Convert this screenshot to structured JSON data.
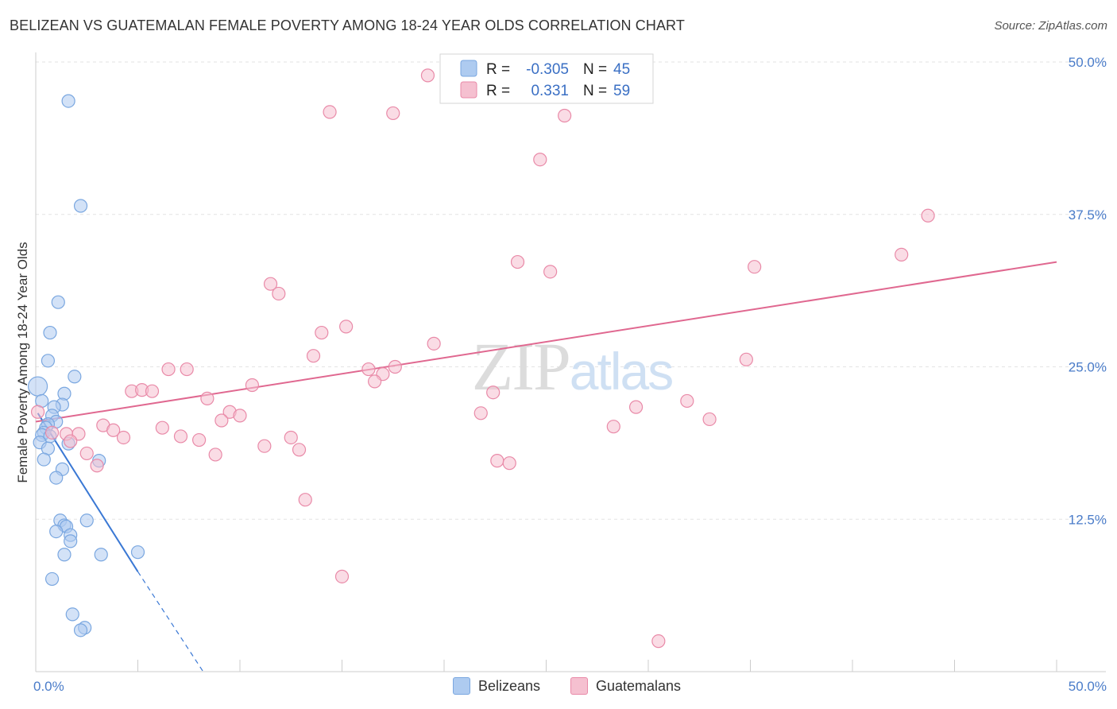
{
  "chart_data": {
    "type": "scatter",
    "title": "BELIZEAN VS GUATEMALAN FEMALE POVERTY AMONG 18-24 YEAR OLDS CORRELATION CHART",
    "source": "Source: ZipAtlas.com",
    "xlabel": "",
    "ylabel": "Female Poverty Among 18-24 Year Olds",
    "xlim": [
      0,
      50
    ],
    "ylim": [
      0,
      50
    ],
    "x_tick_labels": [
      "0.0%",
      "50.0%"
    ],
    "y_ticks": [
      12.5,
      25.0,
      37.5,
      50.0
    ],
    "y_tick_labels": [
      "12.5%",
      "25.0%",
      "37.5%",
      "50.0%"
    ],
    "watermark": "ZIPatlas",
    "legend": {
      "rows": [
        {
          "r_label": "R =",
          "r_value": "-0.305",
          "n_label": "N =",
          "n_value": "45"
        },
        {
          "r_label": "R =",
          "r_value": "0.331",
          "n_label": "N =",
          "n_value": "59"
        }
      ]
    },
    "series": [
      {
        "name": "Belizeans",
        "color": "#7aa7e0",
        "fill": "#aecbf0",
        "trend": {
          "x0": 0.1,
          "y0": 21.2,
          "x1": 5.0,
          "y1": 8.2,
          "dash_x1": 8.2,
          "dash_y1": 0.0
        },
        "points": [
          [
            1.6,
            46.8
          ],
          [
            2.2,
            38.2
          ],
          [
            1.1,
            30.3
          ],
          [
            0.7,
            27.8
          ],
          [
            0.6,
            25.5
          ],
          [
            1.9,
            24.2
          ],
          [
            0.1,
            23.4
          ],
          [
            1.4,
            22.8
          ],
          [
            0.3,
            22.2
          ],
          [
            1.3,
            21.9
          ],
          [
            0.9,
            21.7
          ],
          [
            0.8,
            21.0
          ],
          [
            1.0,
            20.5
          ],
          [
            0.6,
            20.3
          ],
          [
            0.5,
            20.0
          ],
          [
            0.4,
            19.6
          ],
          [
            0.3,
            19.4
          ],
          [
            0.7,
            19.3
          ],
          [
            0.2,
            18.8
          ],
          [
            1.6,
            18.7
          ],
          [
            0.6,
            18.3
          ],
          [
            0.4,
            17.4
          ],
          [
            3.1,
            17.3
          ],
          [
            1.3,
            16.6
          ],
          [
            1.0,
            15.9
          ],
          [
            2.5,
            12.4
          ],
          [
            1.2,
            12.4
          ],
          [
            1.4,
            12.0
          ],
          [
            1.5,
            11.9
          ],
          [
            1.0,
            11.5
          ],
          [
            1.7,
            11.2
          ],
          [
            1.7,
            10.7
          ],
          [
            5.0,
            9.8
          ],
          [
            3.2,
            9.6
          ],
          [
            1.4,
            9.6
          ],
          [
            0.8,
            7.6
          ],
          [
            1.8,
            4.7
          ],
          [
            2.4,
            3.6
          ],
          [
            2.2,
            3.4
          ]
        ]
      },
      {
        "name": "Guatemalans",
        "color": "#e98aa8",
        "fill": "#f5c0d0",
        "trend": {
          "x0": 0.0,
          "y0": 20.5,
          "x1": 50.0,
          "y1": 33.6
        },
        "points": [
          [
            19.2,
            48.9
          ],
          [
            14.4,
            45.9
          ],
          [
            17.5,
            45.8
          ],
          [
            25.9,
            45.6
          ],
          [
            24.7,
            42.0
          ],
          [
            43.7,
            37.4
          ],
          [
            42.4,
            34.2
          ],
          [
            23.6,
            33.6
          ],
          [
            25.2,
            32.8
          ],
          [
            35.2,
            33.2
          ],
          [
            11.5,
            31.8
          ],
          [
            11.9,
            31.0
          ],
          [
            14.0,
            27.8
          ],
          [
            15.2,
            28.3
          ],
          [
            19.5,
            26.9
          ],
          [
            13.6,
            25.9
          ],
          [
            34.8,
            25.6
          ],
          [
            6.5,
            24.8
          ],
          [
            7.4,
            24.8
          ],
          [
            16.3,
            24.8
          ],
          [
            17.6,
            25.0
          ],
          [
            17.0,
            24.4
          ],
          [
            16.6,
            23.8
          ],
          [
            10.6,
            23.5
          ],
          [
            4.7,
            23.0
          ],
          [
            5.2,
            23.1
          ],
          [
            5.7,
            23.0
          ],
          [
            22.4,
            22.9
          ],
          [
            8.4,
            22.4
          ],
          [
            31.9,
            22.2
          ],
          [
            0.1,
            21.3
          ],
          [
            29.4,
            21.7
          ],
          [
            9.5,
            21.3
          ],
          [
            10.0,
            21.0
          ],
          [
            21.8,
            21.2
          ],
          [
            9.1,
            20.6
          ],
          [
            33.0,
            20.7
          ],
          [
            3.3,
            20.2
          ],
          [
            6.2,
            20.0
          ],
          [
            28.3,
            20.1
          ],
          [
            3.8,
            19.8
          ],
          [
            1.5,
            19.5
          ],
          [
            2.1,
            19.5
          ],
          [
            7.1,
            19.3
          ],
          [
            12.5,
            19.2
          ],
          [
            4.3,
            19.2
          ],
          [
            0.8,
            19.6
          ],
          [
            1.7,
            18.9
          ],
          [
            8.0,
            19.0
          ],
          [
            11.2,
            18.5
          ],
          [
            12.9,
            18.2
          ],
          [
            2.5,
            17.9
          ],
          [
            8.8,
            17.8
          ],
          [
            22.6,
            17.3
          ],
          [
            23.2,
            17.1
          ],
          [
            3.0,
            16.9
          ],
          [
            13.2,
            14.1
          ],
          [
            15.0,
            7.8
          ],
          [
            30.5,
            2.5
          ]
        ]
      }
    ]
  }
}
